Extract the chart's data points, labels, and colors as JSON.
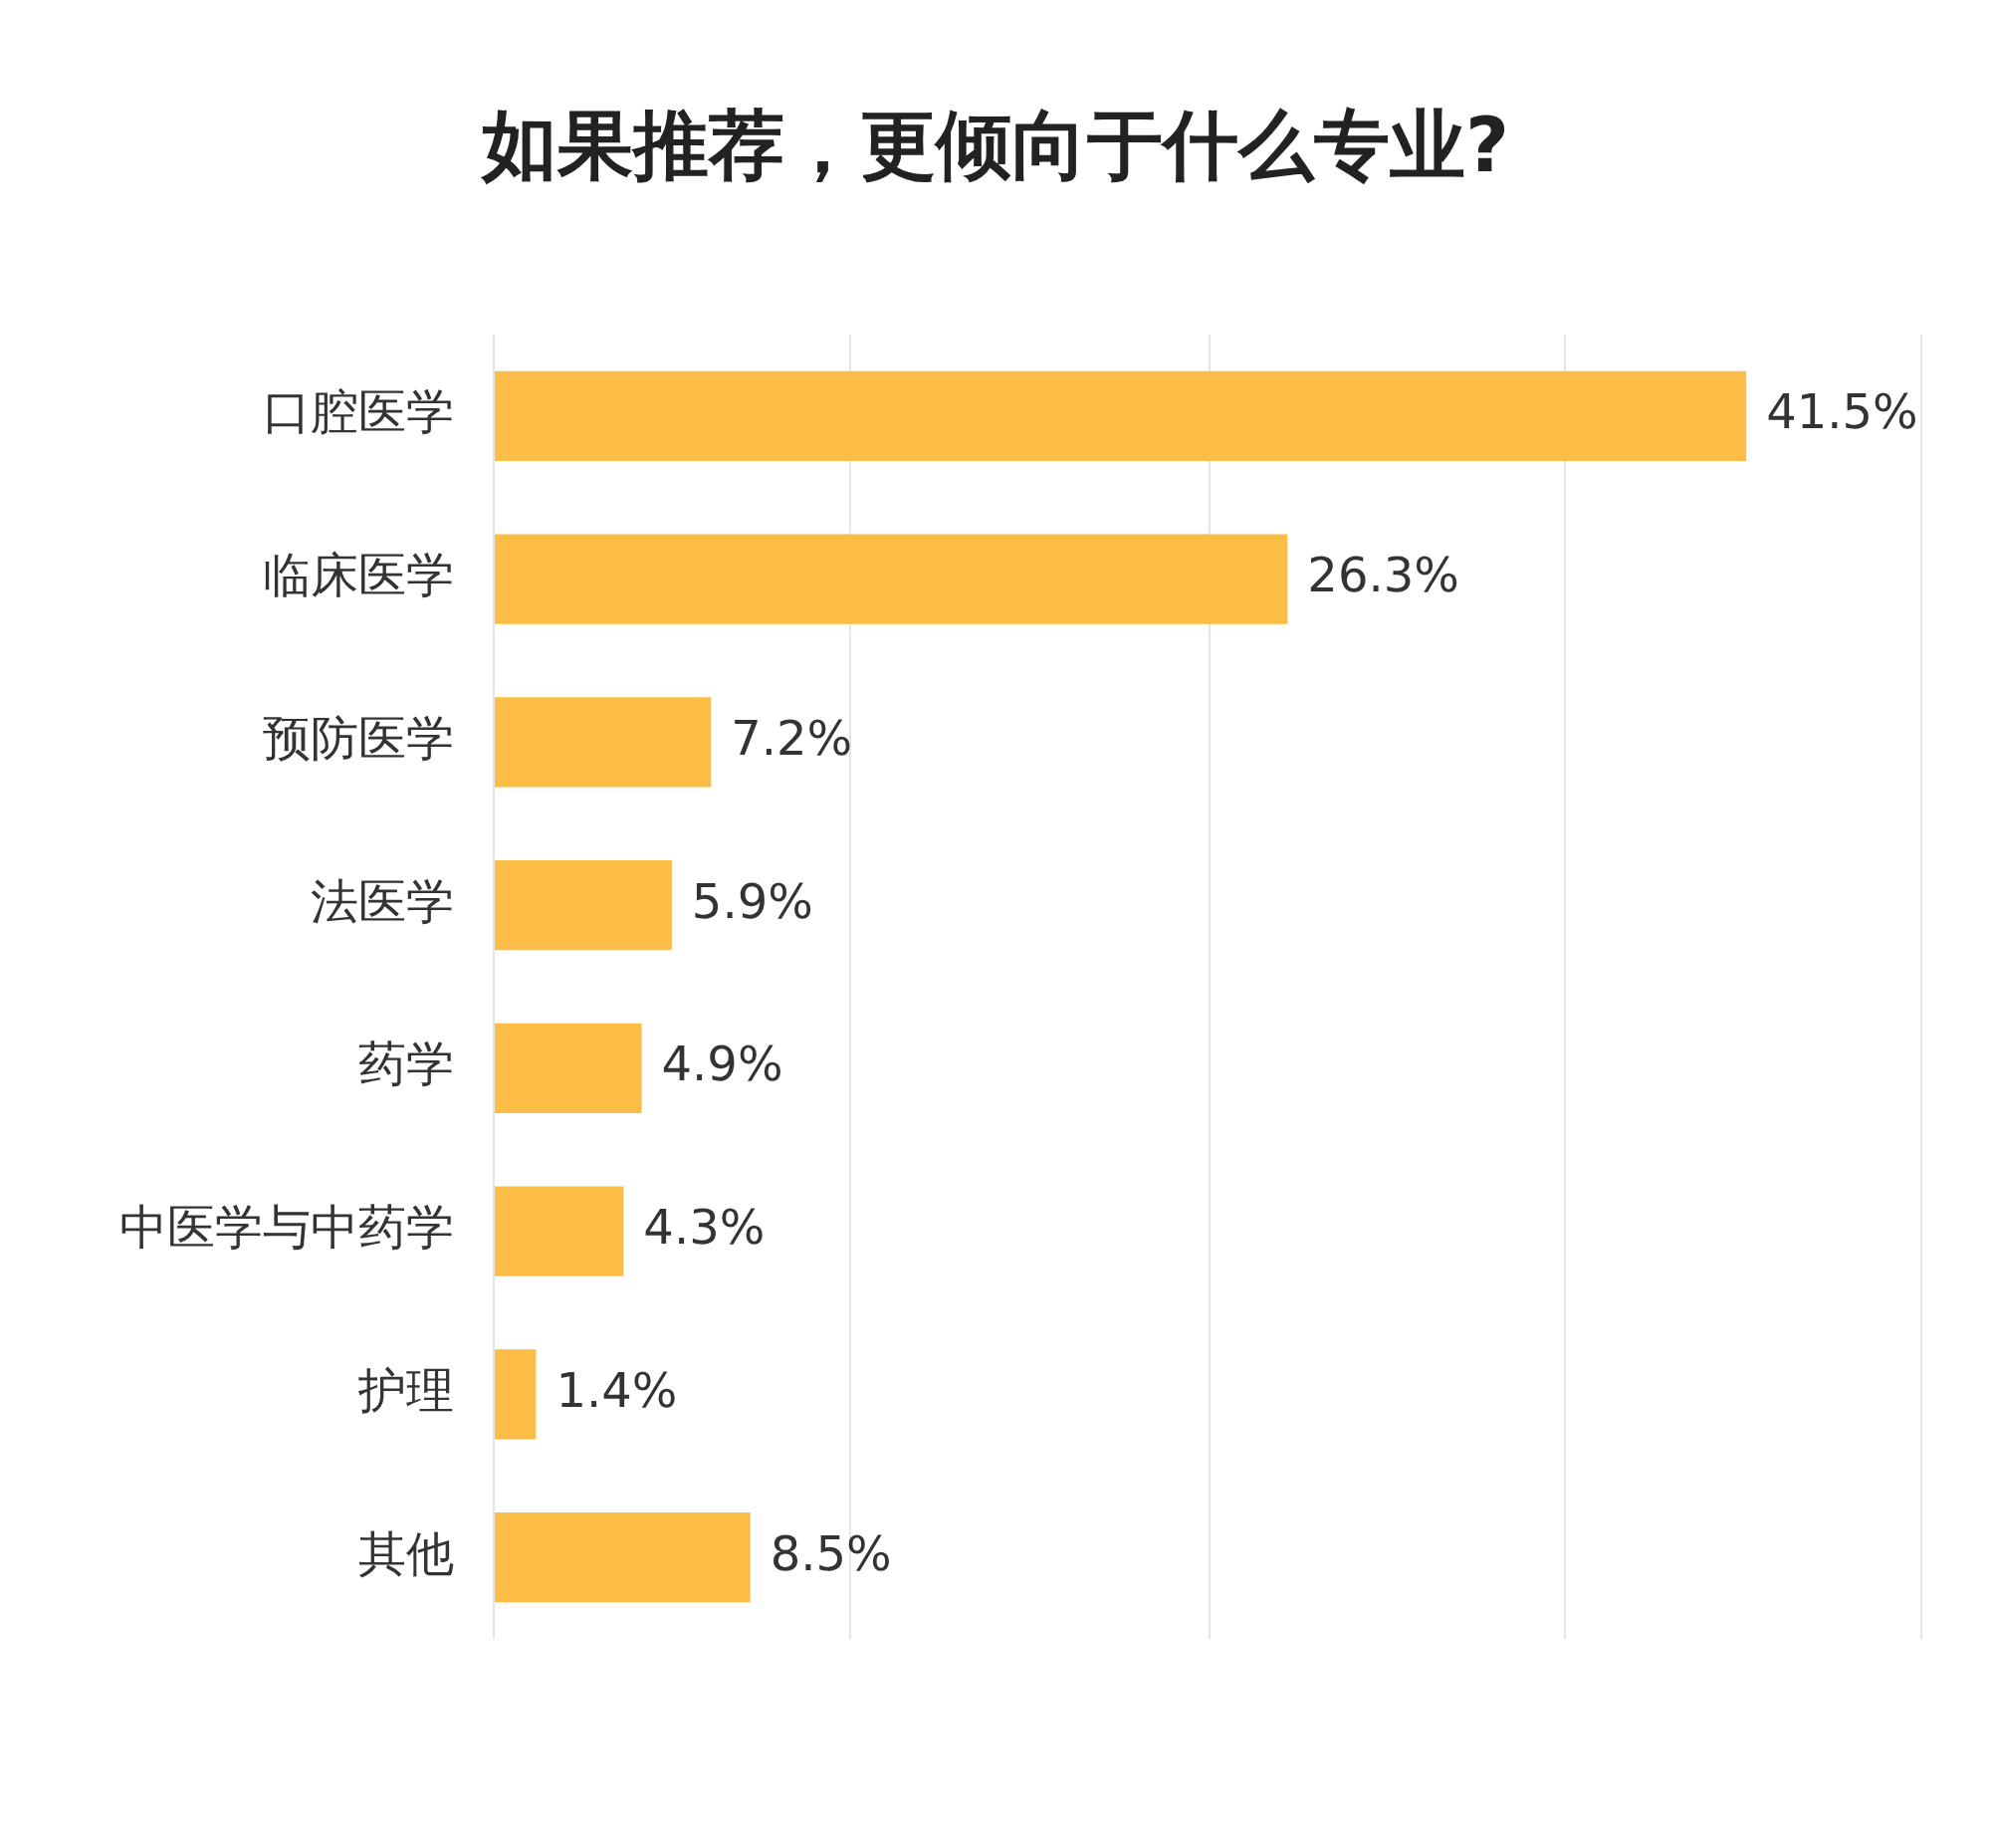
{
  "chart_data": {
    "type": "bar",
    "orientation": "horizontal",
    "title": "如果推荐，更倾向于什么专业?",
    "categories": [
      "口腔医学",
      "临床医学",
      "预防医学",
      "法医学",
      "药学",
      "中医学与中药学",
      "护理",
      "其他"
    ],
    "values": [
      41.5,
      26.3,
      7.2,
      5.9,
      4.9,
      4.3,
      1.4,
      8.5
    ],
    "value_labels": [
      "41.5%",
      "26.3%",
      "7.2%",
      "5.9%",
      "4.9%",
      "4.3%",
      "1.4%",
      "8.5%"
    ],
    "color": "#fbbd45",
    "xlim": [
      0,
      47.3
    ],
    "xticks": [
      {
        "value": 0,
        "label": null
      },
      {
        "value": 11.8,
        "label": null
      },
      {
        "value": 23.7,
        "label": null
      },
      {
        "value": 35.5,
        "label": null
      },
      {
        "value": 47.3,
        "label": null
      }
    ],
    "grid": "x",
    "legend": false,
    "tick_labels": "y"
  }
}
